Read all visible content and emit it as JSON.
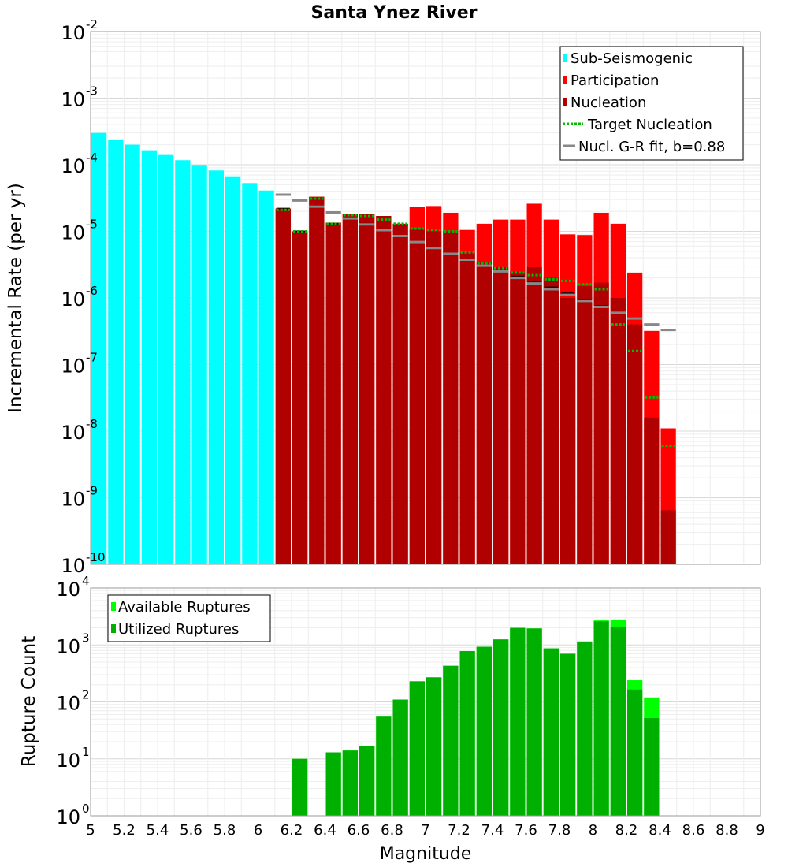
{
  "chart_data": [
    {
      "type": "bar",
      "title": "Santa Ynez River",
      "xlabel": "",
      "ylabel": "Incremental Rate (per yr)",
      "yscale": "log",
      "xlim": [
        5,
        9
      ],
      "ylim_exp": [
        -10,
        -2
      ],
      "grid": true,
      "legend_position": "top-right",
      "colors": {
        "sub_seismogenic": "#00ffff",
        "participation": "#ff0000",
        "nucleation": "#b00000",
        "target_nucleation": "#00bb00",
        "gr_fit": "#888888",
        "nucleation_mark": "#330000"
      },
      "legend": {
        "sub_seismogenic": "Sub-Seismogenic",
        "participation": "Participation",
        "nucleation": "Nucleation",
        "target_nucleation": "Target Nucleation",
        "gr_fit": "Nucl. G-R fit, b=0.88"
      },
      "sub_seismogenic": {
        "x": [
          5.05,
          5.15,
          5.25,
          5.35,
          5.45,
          5.55,
          5.65,
          5.75,
          5.85,
          5.95,
          6.05
        ],
        "values": [
          0.0003,
          0.00024,
          0.0002,
          0.000165,
          0.00014,
          0.000117,
          9.9e-05,
          8.2e-05,
          6.7e-05,
          5.3e-05,
          4.1e-05
        ]
      },
      "supra": {
        "x": [
          6.15,
          6.25,
          6.35,
          6.45,
          6.55,
          6.65,
          6.75,
          6.85,
          6.95,
          7.05,
          7.15,
          7.25,
          7.35,
          7.45,
          7.55,
          7.65,
          7.75,
          7.85,
          7.95,
          8.05,
          8.15,
          8.25,
          8.35,
          8.45
        ],
        "participation": [
          2.2e-05,
          1e-05,
          3.3e-05,
          1.35e-05,
          1.8e-05,
          1.8e-05,
          1.7e-05,
          1.3e-05,
          2.3e-05,
          2.4e-05,
          1.9e-05,
          1.05e-05,
          1.3e-05,
          1.5e-05,
          1.5e-05,
          2.6e-05,
          1.5e-05,
          9e-06,
          8.8e-06,
          1.9e-05,
          1.3e-05,
          2.4e-06,
          3.2e-07,
          1.1e-08
        ],
        "nucleation": [
          2.2e-05,
          1e-05,
          3.3e-05,
          1.35e-05,
          1.8e-05,
          1.8e-05,
          1.7e-05,
          1.3e-05,
          1.1e-05,
          1e-05,
          1e-05,
          4.8e-06,
          3.5e-06,
          2.9e-06,
          2.5e-06,
          2.9e-06,
          2e-06,
          1e-06,
          1.5e-06,
          1.7e-06,
          1e-06,
          4e-07,
          1.6e-08,
          6.5e-10
        ],
        "nucleation_mark": [
          2.2e-05,
          1e-05,
          2.4e-05,
          1.3e-05,
          1.6e-05,
          1.3e-05,
          1.05e-05,
          8.5e-06,
          6.8e-06,
          5.6e-06,
          4.6e-06,
          3.8e-06,
          3.1e-06,
          2.6e-06,
          2.1e-06,
          1.75e-06,
          1.45e-06,
          1.2e-06,
          9.3e-07,
          7.5e-07,
          6.2e-07,
          4.9e-07,
          4e-07,
          3.3e-07
        ],
        "target_nucleation": [
          2.1e-05,
          1e-05,
          3.1e-05,
          1.3e-05,
          1.75e-05,
          1.7e-05,
          1.5e-05,
          1.3e-05,
          1.1e-05,
          1.05e-05,
          1e-05,
          4.8e-06,
          3.3e-06,
          2.8e-06,
          2.4e-06,
          2.2e-06,
          1.9e-06,
          1.8e-06,
          1.6e-06,
          1.35e-06,
          4e-07,
          1.6e-07,
          3.2e-08,
          6e-09
        ]
      },
      "gr_fit": {
        "x": [
          6.15,
          6.25,
          6.35,
          6.45,
          6.55,
          6.65,
          6.75,
          6.85,
          6.95,
          7.05,
          7.15,
          7.25,
          7.35,
          7.45,
          7.55,
          7.65,
          7.75,
          7.85,
          7.95,
          8.05,
          8.15,
          8.25,
          8.35,
          8.45
        ],
        "values": [
          3.55e-05,
          2.9e-05,
          2.35e-05,
          1.92e-05,
          1.56e-05,
          1.27e-05,
          1.04e-05,
          8.5e-06,
          6.9e-06,
          5.6e-06,
          4.6e-06,
          3.75e-06,
          3.05e-06,
          2.5e-06,
          2e-06,
          1.65e-06,
          1.35e-06,
          1.1e-06,
          9e-07,
          7.3e-07,
          6e-07,
          4.9e-07,
          4e-07,
          3.3e-07
        ]
      }
    },
    {
      "type": "bar",
      "title": "",
      "xlabel": "Magnitude",
      "ylabel": "Rupture Count",
      "yscale": "log",
      "xlim": [
        5,
        9
      ],
      "ylim_exp": [
        0,
        4
      ],
      "grid": true,
      "legend_position": "top-left",
      "colors": {
        "available": "#00ff00",
        "utilized": "#00b000"
      },
      "legend": {
        "available": "Available Ruptures",
        "utilized": "Utilized Ruptures"
      },
      "x": [
        6.25,
        6.45,
        6.55,
        6.65,
        6.75,
        6.85,
        6.95,
        7.05,
        7.15,
        7.25,
        7.35,
        7.45,
        7.55,
        7.65,
        7.75,
        7.85,
        7.95,
        8.05,
        8.15,
        8.25,
        8.35
      ],
      "available": [
        10,
        13,
        14,
        17,
        55,
        110,
        230,
        270,
        430,
        780,
        930,
        1250,
        2000,
        1950,
        870,
        700,
        1150,
        2700,
        2800,
        240,
        120
      ],
      "utilized": [
        10,
        13,
        14,
        17,
        55,
        110,
        230,
        270,
        430,
        780,
        930,
        1250,
        2000,
        1950,
        870,
        700,
        1150,
        2600,
        2100,
        165,
        52
      ]
    }
  ],
  "x_ticks": [
    "5",
    "5.2",
    "5.4",
    "5.6",
    "5.8",
    "6",
    "6.2",
    "6.4",
    "6.6",
    "6.8",
    "7",
    "7.2",
    "7.4",
    "7.6",
    "7.8",
    "8",
    "8.2",
    "8.4",
    "8.6",
    "8.8",
    "9"
  ],
  "x_tick_values": [
    5,
    5.2,
    5.4,
    5.6,
    5.8,
    6,
    6.2,
    6.4,
    6.6,
    6.8,
    7,
    7.2,
    7.4,
    7.6,
    7.8,
    8,
    8.2,
    8.4,
    8.6,
    8.8,
    9
  ]
}
